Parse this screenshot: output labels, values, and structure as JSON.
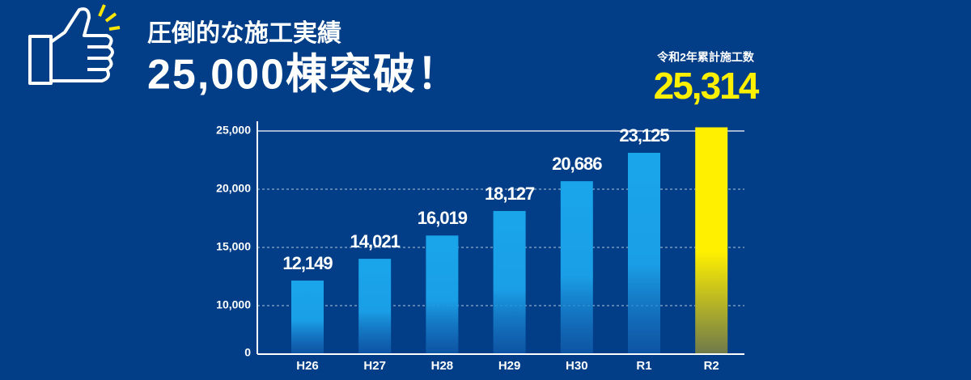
{
  "chart_data": {
    "type": "bar",
    "title": "圧倒的な施工実績",
    "subtitle": "25,000棟突破！",
    "annotation": "令和2年累計施工数",
    "categories": [
      "H26",
      "H27",
      "H28",
      "H29",
      "H30",
      "R1",
      "R2"
    ],
    "values": [
      12149,
      14021,
      16019,
      18127,
      20686,
      23125,
      25314
    ],
    "value_labels": [
      "12,149",
      "14,021",
      "16,019",
      "18,127",
      "20,686",
      "23,125",
      "25,314"
    ],
    "color": "#1aa5ea",
    "highlight_color": "#fff000",
    "yticks": [
      0,
      {
        "value": 10000,
        "label": "10,000"
      },
      {
        "value": 15000,
        "label": "15,000"
      },
      {
        "value": 20000,
        "label": "20,000"
      },
      {
        "value": 25000,
        "label": "25,000"
      }
    ],
    "grid": true
  }
}
